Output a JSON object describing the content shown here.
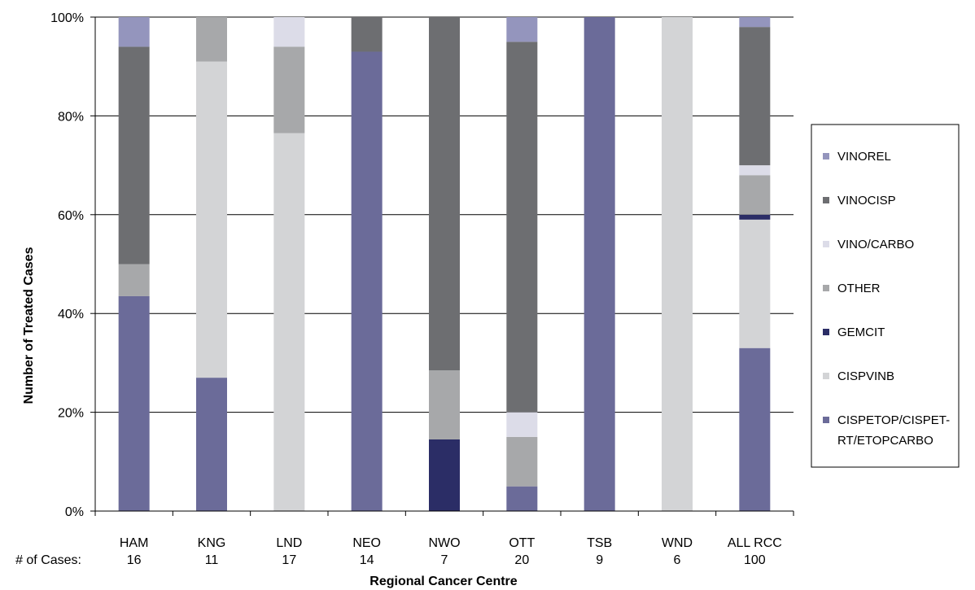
{
  "chart_data": {
    "type": "bar",
    "stacked": true,
    "percent": true,
    "xlabel": "Regional Cancer Centre",
    "ylabel": "Number of Treated Cases",
    "ylim": [
      0,
      100
    ],
    "yticks": [
      "0%",
      "20%",
      "40%",
      "60%",
      "80%",
      "100%"
    ],
    "grid": true,
    "legend_position": "right",
    "cases_label": "# of Cases:",
    "categories": [
      "HAM",
      "KNG",
      "LND",
      "NEO",
      "NWO",
      "OTT",
      "TSB",
      "WND",
      "ALL RCC"
    ],
    "cases": [
      "16",
      "11",
      "17",
      "14",
      "7",
      "20",
      "9",
      "6",
      "100"
    ],
    "series": [
      {
        "name": "CISPETOP/CISPET-RT/ETOPCARBO",
        "color": "#6b6b99",
        "values": [
          43.5,
          27,
          0,
          93,
          0,
          5,
          100,
          0,
          33
        ]
      },
      {
        "name": "CISPVINB",
        "color": "#d3d4d6",
        "values": [
          0,
          64,
          76.5,
          0,
          0,
          0,
          0,
          100,
          26
        ]
      },
      {
        "name": "GEMCIT",
        "color": "#2b2d66",
        "values": [
          0,
          0,
          0,
          0,
          14.5,
          0,
          0,
          0,
          1
        ]
      },
      {
        "name": "OTHER",
        "color": "#a7a8aa",
        "values": [
          6.5,
          9,
          17.5,
          0,
          14,
          10,
          0,
          0,
          8
        ]
      },
      {
        "name": "VINO/CARBO",
        "color": "#dcdce8",
        "values": [
          0,
          0,
          6,
          0,
          0,
          5,
          0,
          0,
          2
        ]
      },
      {
        "name": "VINOCISP",
        "color": "#6d6e71",
        "values": [
          44,
          0,
          0,
          7,
          71.5,
          75,
          0,
          0,
          28
        ]
      },
      {
        "name": "VINOREL",
        "color": "#9495bd",
        "values": [
          6,
          0,
          0,
          0,
          0,
          5,
          0,
          0,
          2
        ]
      }
    ],
    "legend_order": [
      "VINOREL",
      "VINOCISP",
      "VINO/CARBO",
      "OTHER",
      "GEMCIT",
      "CISPVINB",
      "CISPETOP/CISPET-RT/ETOPCARBO"
    ],
    "legend_display": {
      "CISPETOP/CISPET-RT/ETOPCARBO": [
        "CISPETOP/CISPET-",
        "RT/ETOPCARBO"
      ]
    }
  }
}
